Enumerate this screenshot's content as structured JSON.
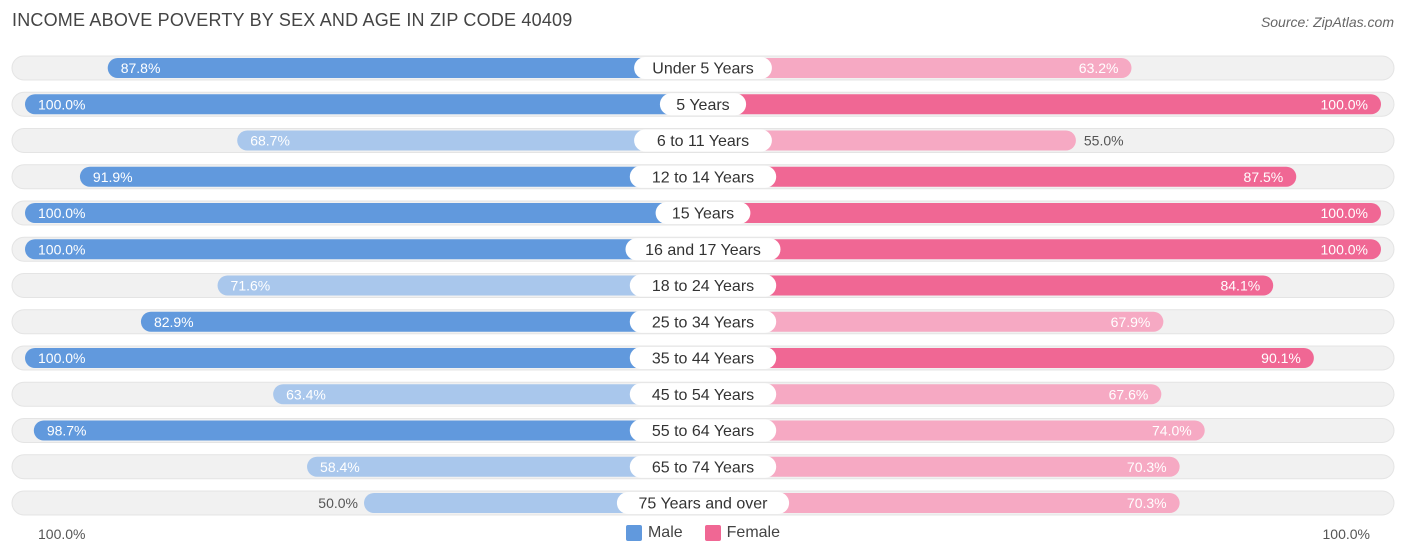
{
  "title": "INCOME ABOVE POVERTY BY SEX AND AGE IN ZIP CODE 40409",
  "source": "Source: ZipAtlas.com",
  "colors": {
    "male_strong": "#6199dd",
    "male_light": "#a9c7ec",
    "female_strong": "#f06794",
    "female_light": "#f6a9c3",
    "track": "#f1f1f1"
  },
  "legend": {
    "male": "Male",
    "female": "Female"
  },
  "axis": {
    "left": "100.0%",
    "right": "100.0%"
  },
  "chart_data": {
    "type": "bar",
    "orientation": "horizontal-diverging",
    "title": "INCOME ABOVE POVERTY BY SEX AND AGE IN ZIP CODE 40409",
    "xlim": [
      0,
      100
    ],
    "categories": [
      "Under 5 Years",
      "5 Years",
      "6 to 11 Years",
      "12 to 14 Years",
      "15 Years",
      "16 and 17 Years",
      "18 to 24 Years",
      "25 to 34 Years",
      "35 to 44 Years",
      "45 to 54 Years",
      "55 to 64 Years",
      "65 to 74 Years",
      "75 Years and over"
    ],
    "series": [
      {
        "name": "Male",
        "values": [
          87.8,
          100.0,
          68.7,
          91.9,
          100.0,
          100.0,
          71.6,
          82.9,
          100.0,
          63.4,
          98.7,
          58.4,
          50.0
        ],
        "labels": [
          "87.8%",
          "100.0%",
          "68.7%",
          "91.9%",
          "100.0%",
          "100.0%",
          "71.6%",
          "82.9%",
          "100.0%",
          "63.4%",
          "98.7%",
          "58.4%",
          "50.0%"
        ]
      },
      {
        "name": "Female",
        "values": [
          63.2,
          100.0,
          55.0,
          87.5,
          100.0,
          100.0,
          84.1,
          67.9,
          90.1,
          67.6,
          74.0,
          70.3,
          70.3
        ],
        "labels": [
          "63.2%",
          "100.0%",
          "55.0%",
          "87.5%",
          "100.0%",
          "100.0%",
          "84.1%",
          "67.9%",
          "90.1%",
          "67.6%",
          "74.0%",
          "70.3%",
          "70.3%"
        ]
      }
    ]
  }
}
